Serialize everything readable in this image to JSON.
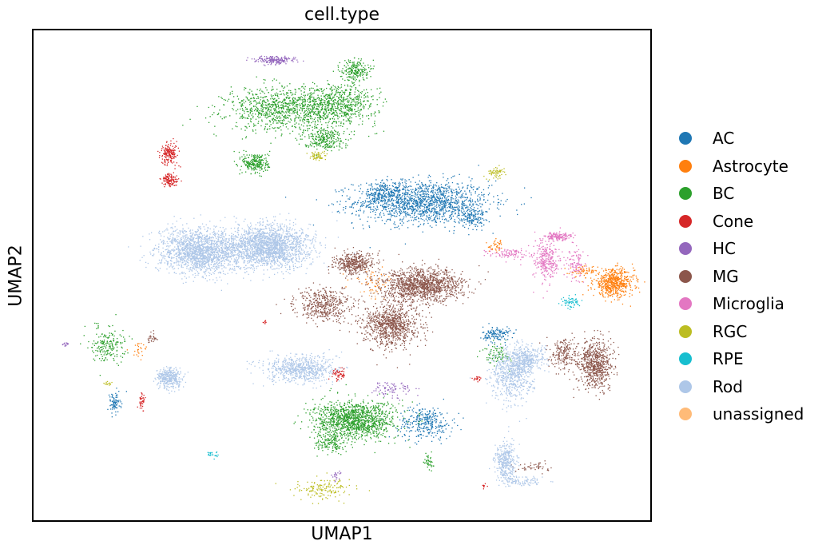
{
  "chart_data": {
    "type": "scatter",
    "title": "cell.type",
    "xlabel": "UMAP1",
    "ylabel": "UMAP2",
    "xlim": [
      0,
      100
    ],
    "ylim": [
      0,
      100
    ],
    "grid": false,
    "legend_position": "right",
    "series": [
      {
        "name": "AC",
        "color": "#1f77b4",
        "clusters": [
          {
            "x": 63,
            "y": 65,
            "rx": 10,
            "ry": 4,
            "n": 1500
          },
          {
            "x": 57,
            "y": 67,
            "rx": 3,
            "ry": 2,
            "n": 200
          },
          {
            "x": 71,
            "y": 62,
            "rx": 2,
            "ry": 2,
            "n": 150
          },
          {
            "x": 75,
            "y": 38,
            "rx": 2,
            "ry": 1.5,
            "n": 140
          },
          {
            "x": 63.5,
            "y": 20,
            "rx": 4,
            "ry": 3,
            "n": 320
          },
          {
            "x": 13,
            "y": 24,
            "rx": 1,
            "ry": 2,
            "n": 80
          }
        ]
      },
      {
        "name": "Astrocyte",
        "color": "#ff7f0e",
        "clusters": [
          {
            "x": 94,
            "y": 48.5,
            "rx": 3,
            "ry": 2.5,
            "n": 600
          },
          {
            "x": 89,
            "y": 51,
            "rx": 2,
            "ry": 1,
            "n": 60
          },
          {
            "x": 75,
            "y": 56,
            "rx": 1.2,
            "ry": 1.2,
            "n": 40
          },
          {
            "x": 55,
            "y": 49,
            "rx": 3,
            "ry": 2,
            "n": 50
          },
          {
            "x": 17,
            "y": 35,
            "rx": 1.5,
            "ry": 1.5,
            "n": 25
          }
        ]
      },
      {
        "name": "BC",
        "color": "#2ca02c",
        "clusters": [
          {
            "x": 40,
            "y": 84,
            "rx": 8,
            "ry": 4,
            "n": 900
          },
          {
            "x": 49,
            "y": 85,
            "rx": 6,
            "ry": 4,
            "n": 700
          },
          {
            "x": 36,
            "y": 73,
            "rx": 2,
            "ry": 2,
            "n": 250
          },
          {
            "x": 52,
            "y": 92,
            "rx": 2,
            "ry": 2,
            "n": 200
          },
          {
            "x": 47,
            "y": 78,
            "rx": 3,
            "ry": 2,
            "n": 250
          },
          {
            "x": 52,
            "y": 20.5,
            "rx": 6,
            "ry": 3.5,
            "n": 1300
          },
          {
            "x": 48,
            "y": 16,
            "rx": 2,
            "ry": 2,
            "n": 150
          },
          {
            "x": 12,
            "y": 36,
            "rx": 2.5,
            "ry": 3.5,
            "n": 200
          },
          {
            "x": 75,
            "y": 34,
            "rx": 2,
            "ry": 2,
            "n": 80
          },
          {
            "x": 64,
            "y": 12,
            "rx": 0.7,
            "ry": 1.5,
            "n": 40
          }
        ]
      },
      {
        "name": "Cone",
        "color": "#d62728",
        "clusters": [
          {
            "x": 22,
            "y": 75,
            "rx": 1.3,
            "ry": 2,
            "n": 180
          },
          {
            "x": 22,
            "y": 69.5,
            "rx": 1.3,
            "ry": 1.2,
            "n": 120
          },
          {
            "x": 49.5,
            "y": 30,
            "rx": 1,
            "ry": 1.2,
            "n": 60
          },
          {
            "x": 17.5,
            "y": 24.5,
            "rx": 0.4,
            "ry": 1.5,
            "n": 40
          },
          {
            "x": 72,
            "y": 29,
            "rx": 1,
            "ry": 0.4,
            "n": 20
          },
          {
            "x": 37.5,
            "y": 40.5,
            "rx": 0.3,
            "ry": 0.3,
            "n": 8
          },
          {
            "x": 73,
            "y": 7,
            "rx": 0.3,
            "ry": 0.6,
            "n": 8
          }
        ]
      },
      {
        "name": "HC",
        "color": "#9467bd",
        "clusters": [
          {
            "x": 39,
            "y": 94,
            "rx": 3,
            "ry": 0.8,
            "n": 180
          },
          {
            "x": 58,
            "y": 27,
            "rx": 3,
            "ry": 1.5,
            "n": 80
          },
          {
            "x": 5,
            "y": 36,
            "rx": 0.5,
            "ry": 0.4,
            "n": 15
          },
          {
            "x": 49,
            "y": 9,
            "rx": 0.8,
            "ry": 1,
            "n": 20
          }
        ]
      },
      {
        "name": "MG",
        "color": "#8c564b",
        "clusters": [
          {
            "x": 63,
            "y": 48,
            "rx": 6,
            "ry": 3,
            "n": 1300
          },
          {
            "x": 58,
            "y": 40,
            "rx": 4,
            "ry": 4,
            "n": 900
          },
          {
            "x": 52,
            "y": 52.5,
            "rx": 3,
            "ry": 2,
            "n": 400
          },
          {
            "x": 47,
            "y": 44,
            "rx": 4,
            "ry": 3,
            "n": 450
          },
          {
            "x": 91,
            "y": 32,
            "rx": 2.5,
            "ry": 4.5,
            "n": 700
          },
          {
            "x": 86,
            "y": 34,
            "rx": 2,
            "ry": 3,
            "n": 200
          },
          {
            "x": 81,
            "y": 11,
            "rx": 3,
            "ry": 1,
            "n": 50
          },
          {
            "x": 19,
            "y": 37,
            "rx": 1,
            "ry": 1,
            "n": 30
          }
        ]
      },
      {
        "name": "Microglia",
        "color": "#e377c2",
        "clusters": [
          {
            "x": 85,
            "y": 58,
            "rx": 2,
            "ry": 0.8,
            "n": 150
          },
          {
            "x": 83,
            "y": 53,
            "rx": 2,
            "ry": 4,
            "n": 300
          },
          {
            "x": 77,
            "y": 54.5,
            "rx": 3,
            "ry": 1,
            "n": 100
          },
          {
            "x": 88,
            "y": 52,
            "rx": 1.5,
            "ry": 3,
            "n": 100
          }
        ]
      },
      {
        "name": "RGC",
        "color": "#bcbd22",
        "clusters": [
          {
            "x": 46,
            "y": 74.5,
            "rx": 1.2,
            "ry": 1,
            "n": 60
          },
          {
            "x": 75,
            "y": 71,
            "rx": 1.5,
            "ry": 1,
            "n": 60
          },
          {
            "x": 47,
            "y": 6.5,
            "rx": 4,
            "ry": 2,
            "n": 150
          },
          {
            "x": 12,
            "y": 28,
            "rx": 0.5,
            "ry": 0.5,
            "n": 15
          }
        ]
      },
      {
        "name": "RPE",
        "color": "#17becf",
        "clusters": [
          {
            "x": 87,
            "y": 44.5,
            "rx": 1.5,
            "ry": 1.2,
            "n": 60
          },
          {
            "x": 29,
            "y": 13.5,
            "rx": 1,
            "ry": 0.7,
            "n": 25
          }
        ]
      },
      {
        "name": "Rod",
        "color": "#aec7e8",
        "clusters": [
          {
            "x": 27,
            "y": 55,
            "rx": 6,
            "ry": 4,
            "n": 1800
          },
          {
            "x": 38,
            "y": 56,
            "rx": 6,
            "ry": 4,
            "n": 2000
          },
          {
            "x": 43,
            "y": 31,
            "rx": 5,
            "ry": 2.5,
            "n": 700
          },
          {
            "x": 22,
            "y": 29,
            "rx": 2,
            "ry": 2,
            "n": 350
          },
          {
            "x": 77.5,
            "y": 30,
            "rx": 3,
            "ry": 5,
            "n": 700
          },
          {
            "x": 80,
            "y": 33,
            "rx": 2.5,
            "ry": 2.5,
            "n": 300
          },
          {
            "x": 76.5,
            "y": 12,
            "rx": 1.5,
            "ry": 3.5,
            "n": 350
          },
          {
            "x": 79,
            "y": 8,
            "rx": 3,
            "ry": 1,
            "n": 100
          }
        ]
      },
      {
        "name": "unassigned",
        "color": "#ffbb78",
        "clusters": [
          {
            "x": 55,
            "y": 47,
            "rx": 2,
            "ry": 2,
            "n": 15
          }
        ]
      }
    ]
  }
}
